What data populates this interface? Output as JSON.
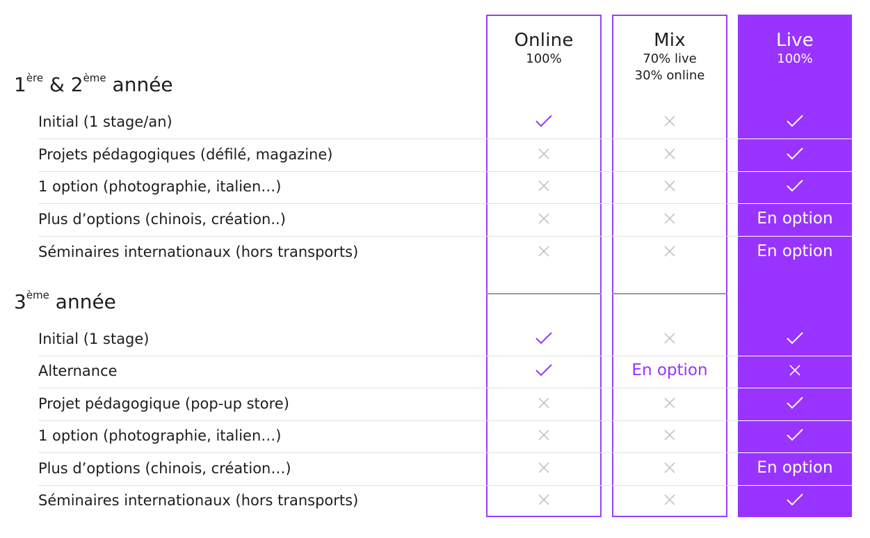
{
  "colors": {
    "accent": "#9933ff",
    "cross": "#c4c4c4",
    "divider": "#e2e2e2",
    "text": "#1d1d1f"
  },
  "columns": [
    {
      "key": "online",
      "title": "Online",
      "subtitle": [
        "100%"
      ],
      "style": "outline"
    },
    {
      "key": "mix",
      "title": "Mix",
      "subtitle": [
        "70% live",
        "30% online"
      ],
      "style": "outline"
    },
    {
      "key": "live",
      "title": "Live",
      "subtitle": [
        "100%"
      ],
      "style": "filled"
    }
  ],
  "sections": [
    {
      "title_main": "1",
      "title_sup1": "ère",
      "title_mid": " & 2",
      "title_sup2": "ème",
      "title_end": " année",
      "rows": [
        {
          "label": "Initial (1 stage/an)",
          "values": [
            "check",
            "cross",
            "check"
          ]
        },
        {
          "label": "Projets pédagogiques (défilé, magazine)",
          "values": [
            "cross",
            "cross",
            "check"
          ]
        },
        {
          "label": "1 option (photographie, italien…)",
          "values": [
            "cross",
            "cross",
            "check"
          ]
        },
        {
          "label": "Plus d’options (chinois, création..)",
          "values": [
            "cross",
            "cross",
            "En option"
          ]
        },
        {
          "label": "Séminaires internationaux (hors transports)",
          "values": [
            "cross",
            "cross",
            "En option"
          ]
        }
      ]
    },
    {
      "title_main": "3",
      "title_sup1": "ème",
      "title_end": " année",
      "rows": [
        {
          "label": "Initial (1 stage)",
          "values": [
            "check",
            "cross",
            "check"
          ]
        },
        {
          "label": "Alternance",
          "values": [
            "check",
            "En option",
            "cross"
          ]
        },
        {
          "label": "Projet pédagogique (pop-up store)",
          "values": [
            "cross",
            "cross",
            "check"
          ]
        },
        {
          "label": "1 option (photographie, italien…)",
          "values": [
            "cross",
            "cross",
            "check"
          ]
        },
        {
          "label": "Plus d’options (chinois, création…)",
          "values": [
            "cross",
            "cross",
            "En option"
          ]
        },
        {
          "label": "Séminaires internationaux (hors transports)",
          "values": [
            "cross",
            "cross",
            "check"
          ]
        }
      ]
    }
  ]
}
